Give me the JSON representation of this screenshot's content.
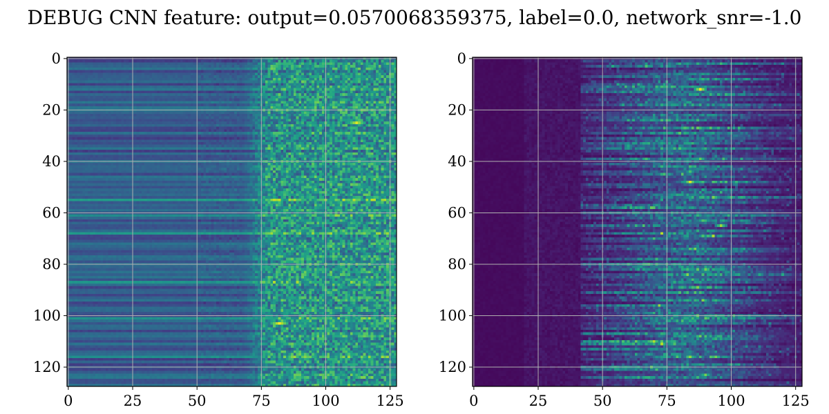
{
  "figure": {
    "title": "DEBUG CNN feature: output=0.0570068359375, label=0.0, network_snr=-1.0"
  },
  "chart_data": [
    {
      "type": "heatmap",
      "colormap": "viridis",
      "grid": true,
      "grid_color": "#b0b0b0",
      "rows": 128,
      "cols": 128,
      "xlim": [
        0,
        127
      ],
      "ylim": [
        127,
        0
      ],
      "xticks": [
        0,
        25,
        50,
        75,
        100,
        125
      ],
      "yticks": [
        0,
        20,
        40,
        60,
        80,
        100,
        120
      ],
      "value_range": [
        0.0,
        1.0
      ],
      "description_of_values": "rows show horizontal banding; columns 0-70 are smooth mid-level (~0.2-0.35), columns 75-127 are noisy with bright spots near (112,25), (82,103), (80,67)",
      "hotspots": [
        {
          "x": 112,
          "y": 25,
          "value": 0.95
        },
        {
          "x": 82,
          "y": 103,
          "value": 1.0
        },
        {
          "x": 80,
          "y": 67,
          "value": 0.8
        },
        {
          "x": 106,
          "y": 63,
          "value": 0.75
        },
        {
          "x": 95,
          "y": 42,
          "value": 0.7
        }
      ]
    },
    {
      "type": "heatmap",
      "colormap": "viridis",
      "grid": true,
      "grid_color": "#b0b0b0",
      "rows": 128,
      "cols": 128,
      "xlim": [
        0,
        127
      ],
      "ylim": [
        127,
        0
      ],
      "xticks": [
        0,
        25,
        50,
        75,
        100,
        125
      ],
      "yticks": [
        0,
        20,
        40,
        60,
        80,
        100,
        120
      ],
      "value_range": [
        0.0,
        1.0
      ],
      "description_of_values": "mostly near 0 (dark purple) for columns 0-40; scattered streaks columns 45-127 with a bright band around columns 75-100",
      "hotspots": [
        {
          "x": 88,
          "y": 12,
          "value": 1.0
        },
        {
          "x": 84,
          "y": 48,
          "value": 0.95
        },
        {
          "x": 96,
          "y": 65,
          "value": 0.85
        },
        {
          "x": 90,
          "y": 123,
          "value": 0.8
        },
        {
          "x": 85,
          "y": 86,
          "value": 0.7
        },
        {
          "x": 84,
          "y": 44,
          "value": 0.7
        }
      ]
    }
  ]
}
